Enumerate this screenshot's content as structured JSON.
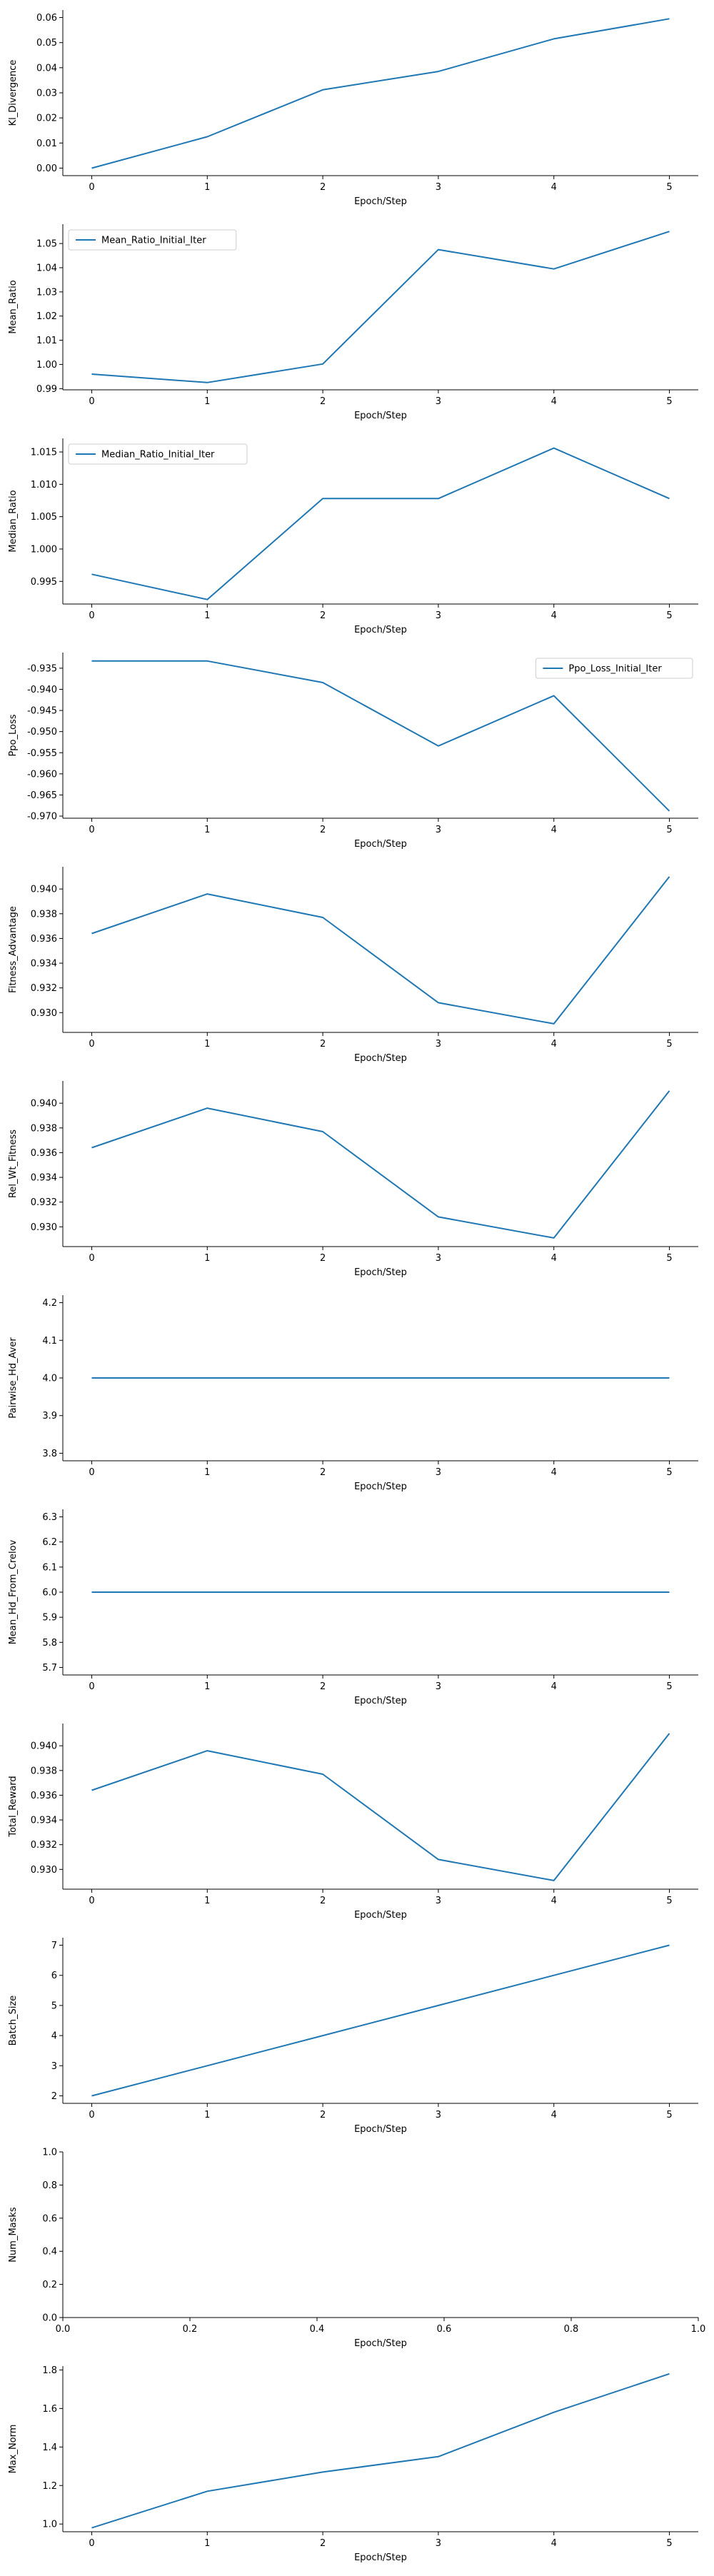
{
  "style": {
    "line_color": "#1f77b4",
    "axis_color": "#000000",
    "legend_border": "#cccccc"
  },
  "chart_data": [
    {
      "type": "line",
      "xlabel": "Epoch/Step",
      "ylabel": "Kl_Divergence",
      "x": [
        0,
        1,
        2,
        3,
        4,
        5
      ],
      "xticks": [
        "0",
        "1",
        "2",
        "3",
        "4",
        "5"
      ],
      "xlim": [
        -0.25,
        5.25
      ],
      "ylim": [
        -0.003,
        0.063
      ],
      "yticks": [
        "0.00",
        "0.01",
        "0.02",
        "0.03",
        "0.04",
        "0.05",
        "0.06"
      ],
      "ytick_values": [
        0.0,
        0.01,
        0.02,
        0.03,
        0.04,
        0.05,
        0.06
      ],
      "series": [
        {
          "values": [
            0.0,
            0.0125,
            0.0312,
            0.0385,
            0.0515,
            0.0595
          ]
        }
      ],
      "legend": "none"
    },
    {
      "type": "line",
      "xlabel": "Epoch/Step",
      "ylabel": "Mean_Ratio",
      "x": [
        0,
        1,
        2,
        3,
        4,
        5
      ],
      "xticks": [
        "0",
        "1",
        "2",
        "3",
        "4",
        "5"
      ],
      "xlim": [
        -0.25,
        5.25
      ],
      "ylim": [
        0.9895,
        1.058
      ],
      "yticks": [
        "0.99",
        "1.00",
        "1.01",
        "1.02",
        "1.03",
        "1.04",
        "1.05"
      ],
      "ytick_values": [
        0.99,
        1.0,
        1.01,
        1.02,
        1.03,
        1.04,
        1.05
      ],
      "series": [
        {
          "name": "Mean_Ratio_Initial_Iter",
          "values": [
            0.996,
            0.9925,
            1.0002,
            1.0475,
            1.0395,
            1.055
          ]
        }
      ],
      "legend": "top-left"
    },
    {
      "type": "line",
      "xlabel": "Epoch/Step",
      "ylabel": "Median_Ratio",
      "x": [
        0,
        1,
        2,
        3,
        4,
        5
      ],
      "xticks": [
        "0",
        "1",
        "2",
        "3",
        "4",
        "5"
      ],
      "xlim": [
        -0.25,
        5.25
      ],
      "ylim": [
        0.9915,
        1.0171
      ],
      "yticks": [
        "0.995",
        "1.000",
        "1.005",
        "1.010",
        "1.015"
      ],
      "ytick_values": [
        0.995,
        1.0,
        1.005,
        1.01,
        1.015
      ],
      "series": [
        {
          "name": "Median_Ratio_Initial_Iter",
          "values": [
            0.9961,
            0.9922,
            1.0078,
            1.0078,
            1.0156,
            1.0078
          ]
        }
      ],
      "legend": "top-left"
    },
    {
      "type": "line",
      "xlabel": "Epoch/Step",
      "ylabel": "Ppo_Loss",
      "x": [
        0,
        1,
        2,
        3,
        4,
        5
      ],
      "xticks": [
        "0",
        "1",
        "2",
        "3",
        "4",
        "5"
      ],
      "xlim": [
        -0.25,
        5.25
      ],
      "ylim": [
        -0.9705,
        -0.9313
      ],
      "yticks": [
        "-0.935",
        "-0.940",
        "-0.945",
        "-0.950",
        "-0.955",
        "-0.960",
        "-0.965",
        "-0.970"
      ],
      "ytick_values": [
        -0.935,
        -0.94,
        -0.945,
        -0.95,
        -0.955,
        -0.96,
        -0.965,
        -0.97
      ],
      "series": [
        {
          "name": "Ppo_Loss_Initial_Iter",
          "values": [
            -0.9333,
            -0.9333,
            -0.9384,
            -0.9534,
            -0.9415,
            -0.9688
          ]
        }
      ],
      "legend": "top-right"
    },
    {
      "type": "line",
      "xlabel": "Epoch/Step",
      "ylabel": "Fitness_Advantage",
      "x": [
        0,
        1,
        2,
        3,
        4,
        5
      ],
      "xticks": [
        "0",
        "1",
        "2",
        "3",
        "4",
        "5"
      ],
      "xlim": [
        -0.25,
        5.25
      ],
      "ylim": [
        0.9284,
        0.9418
      ],
      "yticks": [
        "0.930",
        "0.932",
        "0.934",
        "0.936",
        "0.938",
        "0.940"
      ],
      "ytick_values": [
        0.93,
        0.932,
        0.934,
        0.936,
        0.938,
        0.94
      ],
      "series": [
        {
          "values": [
            0.9364,
            0.9396,
            0.9377,
            0.9308,
            0.9291,
            0.941
          ]
        }
      ],
      "legend": "none"
    },
    {
      "type": "line",
      "xlabel": "Epoch/Step",
      "ylabel": "Rel_Wt_Fitness",
      "x": [
        0,
        1,
        2,
        3,
        4,
        5
      ],
      "xticks": [
        "0",
        "1",
        "2",
        "3",
        "4",
        "5"
      ],
      "xlim": [
        -0.25,
        5.25
      ],
      "ylim": [
        0.9284,
        0.9418
      ],
      "yticks": [
        "0.930",
        "0.932",
        "0.934",
        "0.936",
        "0.938",
        "0.940"
      ],
      "ytick_values": [
        0.93,
        0.932,
        0.934,
        0.936,
        0.938,
        0.94
      ],
      "series": [
        {
          "values": [
            0.9364,
            0.9396,
            0.9377,
            0.9308,
            0.9291,
            0.941
          ]
        }
      ],
      "legend": "none"
    },
    {
      "type": "line",
      "xlabel": "Epoch/Step",
      "ylabel": "Pairwise_Hd_Aver",
      "x": [
        0,
        1,
        2,
        3,
        4,
        5
      ],
      "xticks": [
        "0",
        "1",
        "2",
        "3",
        "4",
        "5"
      ],
      "xlim": [
        -0.25,
        5.25
      ],
      "ylim": [
        3.78,
        4.22
      ],
      "yticks": [
        "3.8",
        "3.9",
        "4.0",
        "4.1",
        "4.2"
      ],
      "ytick_values": [
        3.8,
        3.9,
        4.0,
        4.1,
        4.2
      ],
      "series": [
        {
          "values": [
            4.0,
            4.0,
            4.0,
            4.0,
            4.0,
            4.0
          ]
        }
      ],
      "legend": "none"
    },
    {
      "type": "line",
      "xlabel": "Epoch/Step",
      "ylabel": "Mean_Hd_From_Crelov",
      "x": [
        0,
        1,
        2,
        3,
        4,
        5
      ],
      "xticks": [
        "0",
        "1",
        "2",
        "3",
        "4",
        "5"
      ],
      "xlim": [
        -0.25,
        5.25
      ],
      "ylim": [
        5.67,
        6.33
      ],
      "yticks": [
        "5.7",
        "5.8",
        "5.9",
        "6.0",
        "6.1",
        "6.2",
        "6.3"
      ],
      "ytick_values": [
        5.7,
        5.8,
        5.9,
        6.0,
        6.1,
        6.2,
        6.3
      ],
      "series": [
        {
          "values": [
            6.0,
            6.0,
            6.0,
            6.0,
            6.0,
            6.0
          ]
        }
      ],
      "legend": "none"
    },
    {
      "type": "line",
      "xlabel": "Epoch/Step",
      "ylabel": "Total_Reward",
      "x": [
        0,
        1,
        2,
        3,
        4,
        5
      ],
      "xticks": [
        "0",
        "1",
        "2",
        "3",
        "4",
        "5"
      ],
      "xlim": [
        -0.25,
        5.25
      ],
      "ylim": [
        0.9284,
        0.9418
      ],
      "yticks": [
        "0.930",
        "0.932",
        "0.934",
        "0.936",
        "0.938",
        "0.940"
      ],
      "ytick_values": [
        0.93,
        0.932,
        0.934,
        0.936,
        0.938,
        0.94
      ],
      "series": [
        {
          "values": [
            0.9364,
            0.9396,
            0.9377,
            0.9308,
            0.9291,
            0.941
          ]
        }
      ],
      "legend": "none"
    },
    {
      "type": "line",
      "xlabel": "Epoch/Step",
      "ylabel": "Batch_Size",
      "x": [
        0,
        1,
        2,
        3,
        4,
        5
      ],
      "xticks": [
        "0",
        "1",
        "2",
        "3",
        "4",
        "5"
      ],
      "xlim": [
        -0.25,
        5.25
      ],
      "ylim": [
        1.75,
        7.25
      ],
      "yticks": [
        "2",
        "3",
        "4",
        "5",
        "6",
        "7"
      ],
      "ytick_values": [
        2,
        3,
        4,
        5,
        6,
        7
      ],
      "series": [
        {
          "values": [
            2,
            3,
            4,
            5,
            6,
            7
          ]
        }
      ],
      "legend": "none"
    },
    {
      "type": "line",
      "xlabel": "Epoch/Step",
      "ylabel": "Num_Masks",
      "x": [],
      "xticks": [
        "0.0",
        "0.2",
        "0.4",
        "0.6",
        "0.8",
        "1.0"
      ],
      "xtick_values": [
        0.0,
        0.2,
        0.4,
        0.6,
        0.8,
        1.0
      ],
      "xlim": [
        0.0,
        1.0
      ],
      "ylim": [
        0.0,
        1.0
      ],
      "yticks": [
        "0.0",
        "0.2",
        "0.4",
        "0.6",
        "0.8",
        "1.0"
      ],
      "ytick_values": [
        0.0,
        0.2,
        0.4,
        0.6,
        0.8,
        1.0
      ],
      "series": [],
      "legend": "none"
    },
    {
      "type": "line",
      "xlabel": "Epoch/Step",
      "ylabel": "Max_Norm",
      "x": [
        0,
        1,
        2,
        3,
        4,
        5
      ],
      "xticks": [
        "0",
        "1",
        "2",
        "3",
        "4",
        "5"
      ],
      "xlim": [
        -0.25,
        5.25
      ],
      "ylim": [
        0.96,
        1.82
      ],
      "yticks": [
        "1.0",
        "1.2",
        "1.4",
        "1.6",
        "1.8"
      ],
      "ytick_values": [
        1.0,
        1.2,
        1.4,
        1.6,
        1.8
      ],
      "series": [
        {
          "values": [
            0.98,
            1.17,
            1.27,
            1.35,
            1.58,
            1.78
          ]
        }
      ],
      "legend": "none"
    }
  ]
}
